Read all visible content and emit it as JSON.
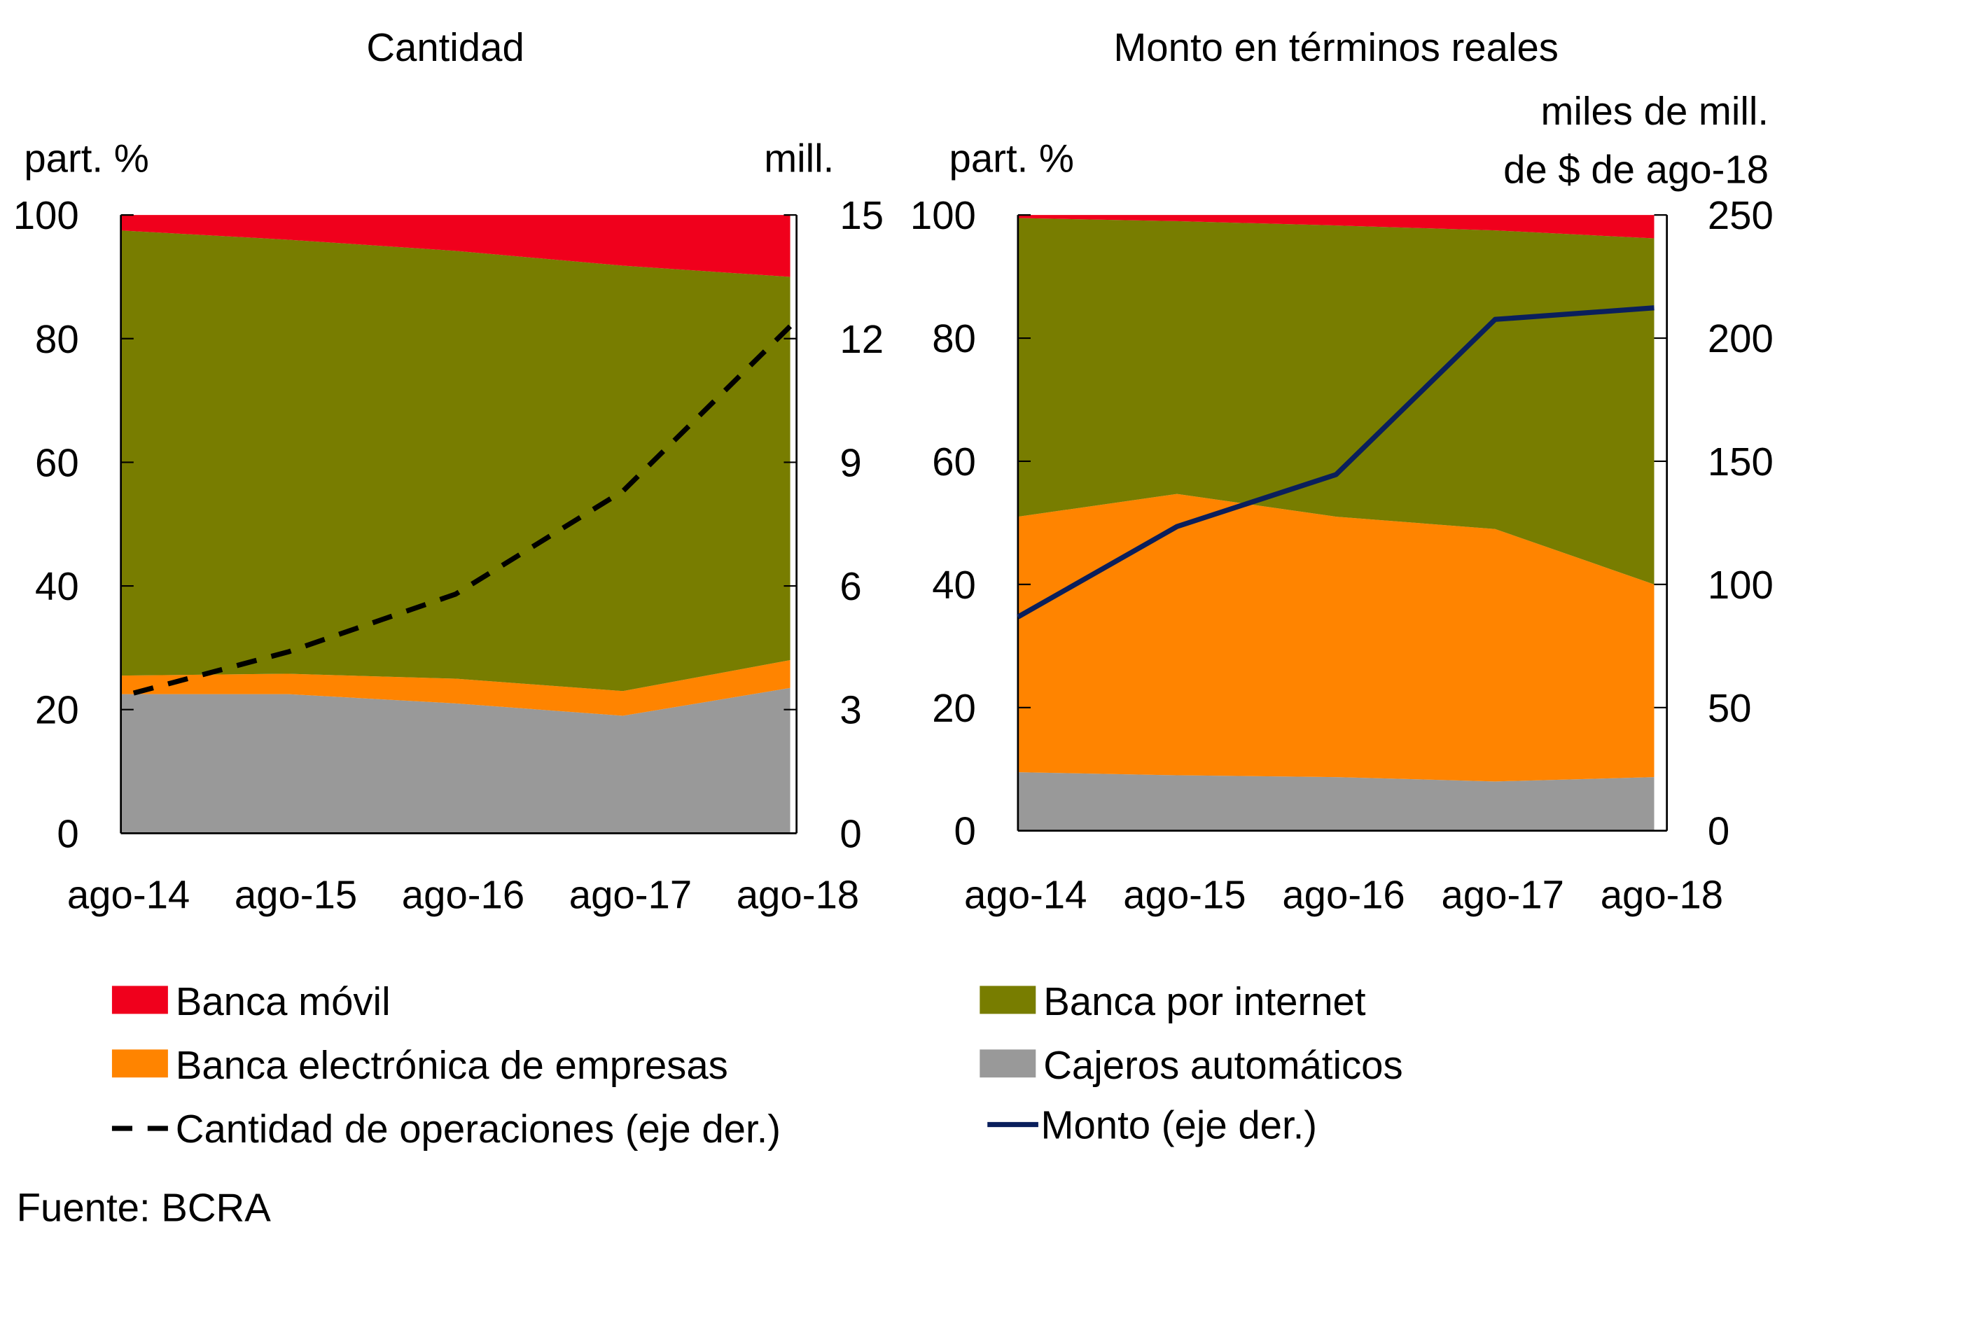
{
  "chart_data": [
    {
      "type": "area",
      "title": "Cantidad",
      "ylabel_left": "part. %",
      "ylabel_right": "mill.",
      "categories": [
        "ago-14",
        "ago-15",
        "ago-16",
        "ago-17",
        "ago-18"
      ],
      "ylim_left": [
        0,
        100
      ],
      "ylim_right": [
        0,
        15
      ],
      "yticks_left": [
        "0",
        "20",
        "40",
        "60",
        "80",
        "100"
      ],
      "yticks_right": [
        "0",
        "3",
        "6",
        "9",
        "12",
        "15"
      ],
      "grid": false,
      "stacked_series": [
        {
          "name": "Cajeros automáticos",
          "color": "#999999",
          "values": [
            22.5,
            22.5,
            21,
            19,
            23.5
          ]
        },
        {
          "name": "Banca electrónica de empresas",
          "color": "#FF8400",
          "values": [
            3,
            3.3,
            4,
            4,
            4.5
          ]
        },
        {
          "name": "Banca por internet",
          "color": "#787D00",
          "values": [
            72,
            70.2,
            69.2,
            68.8,
            62
          ]
        },
        {
          "name": "Banca móvil",
          "color": "#F0001C",
          "values": [
            2.5,
            4,
            5.8,
            8.2,
            10
          ]
        }
      ],
      "line_series": {
        "name": "Cantidad de operaciones (eje der.)",
        "color": "#000000",
        "style": "dashed",
        "axis": "right",
        "values": [
          3.4,
          4.4,
          5.8,
          8.3,
          12.3
        ]
      }
    },
    {
      "type": "area",
      "title": "Monto en términos reales",
      "ylabel_left": "part. %",
      "ylabel_right_1": "miles de mill.",
      "ylabel_right_2": "de $ de ago-18",
      "categories": [
        "ago-14",
        "ago-15",
        "ago-16",
        "ago-17",
        "ago-18"
      ],
      "ylim_left": [
        0,
        100
      ],
      "ylim_right": [
        0,
        250
      ],
      "yticks_left": [
        "0",
        "20",
        "40",
        "60",
        "80",
        "100"
      ],
      "yticks_right": [
        "0",
        "50",
        "100",
        "150",
        "200",
        "250"
      ],
      "grid": false,
      "stacked_series": [
        {
          "name": "Cajeros automáticos",
          "color": "#999999",
          "values": [
            9.5,
            9,
            8.7,
            8,
            8.7
          ]
        },
        {
          "name": "Banca electrónica de empresas",
          "color": "#FF8400",
          "values": [
            41.5,
            45.7,
            42.3,
            41,
            31.3
          ]
        },
        {
          "name": "Banca por internet",
          "color": "#787D00",
          "values": [
            48.5,
            44.3,
            47.3,
            48.5,
            56.2
          ]
        },
        {
          "name": "Banca móvil",
          "color": "#F0001C",
          "values": [
            0.5,
            1,
            1.7,
            2.5,
            3.8
          ]
        }
      ],
      "line_series": {
        "name": "Monto  (eje der.)",
        "color": "#0A1F5C",
        "style": "solid",
        "axis": "right",
        "values": [
          86.8,
          123.5,
          144.6,
          207.6,
          212.3
        ]
      }
    }
  ],
  "legend": {
    "items": [
      {
        "label": "Banca móvil",
        "color": "#F0001C",
        "kind": "box"
      },
      {
        "label": "Banca por internet",
        "color": "#787D00",
        "kind": "box"
      },
      {
        "label": "Banca electrónica de empresas",
        "color": "#FF8400",
        "kind": "box"
      },
      {
        "label": "Cajeros automáticos",
        "color": "#999999",
        "kind": "box"
      },
      {
        "label": "Cantidad de operaciones (eje der.)",
        "color": "#000000",
        "kind": "dash"
      },
      {
        "label": "Monto  (eje der.)",
        "color": "#0A1F5C",
        "kind": "line"
      }
    ]
  },
  "source": "Fuente:  BCRA"
}
